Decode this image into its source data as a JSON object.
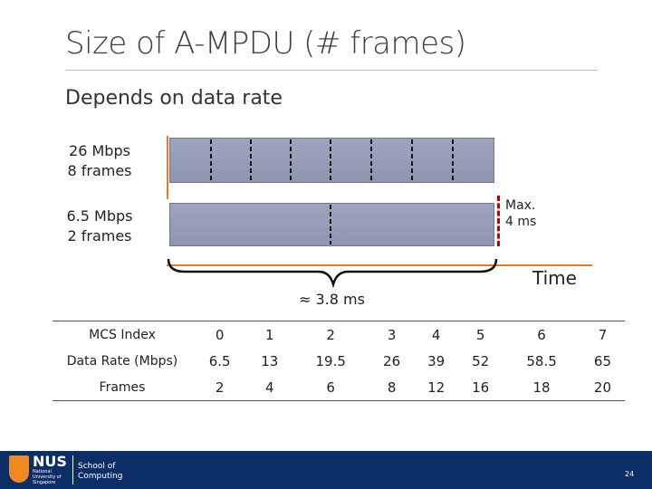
{
  "slide": {
    "title": "Size of A-MPDU (# frames)",
    "subtitle": "Depends on data rate",
    "page_number": "24"
  },
  "diagram": {
    "bar1_rate": "26 Mbps",
    "bar1_frames": "8 frames",
    "bar2_rate": "6.5 Mbps",
    "bar2_frames": "2 frames",
    "max_label_line1": "Max.",
    "max_label_line2": "4 ms",
    "time_label": "Time",
    "approx_label": "≈ 3.8 ms"
  },
  "table": {
    "rows": [
      {
        "label": "MCS Index",
        "values": [
          "0",
          "1",
          "2",
          "3",
          "4",
          "5",
          "6",
          "7"
        ]
      },
      {
        "label": "Data Rate (Mbps)",
        "values": [
          "6.5",
          "13",
          "19.5",
          "26",
          "39",
          "52",
          "58.5",
          "65"
        ]
      },
      {
        "label": "Frames",
        "values": [
          "2",
          "4",
          "6",
          "8",
          "12",
          "16",
          "18",
          "20"
        ]
      }
    ]
  },
  "footer": {
    "logo_text": "NUS",
    "logo_sub": "National University of Singapore",
    "school_line1": "School of",
    "school_line2": "Computing"
  },
  "colors": {
    "bar_fill": "#9ea4bd",
    "axis": "#e97a24",
    "max_line": "#c00000",
    "footer": "#0b2e67"
  }
}
